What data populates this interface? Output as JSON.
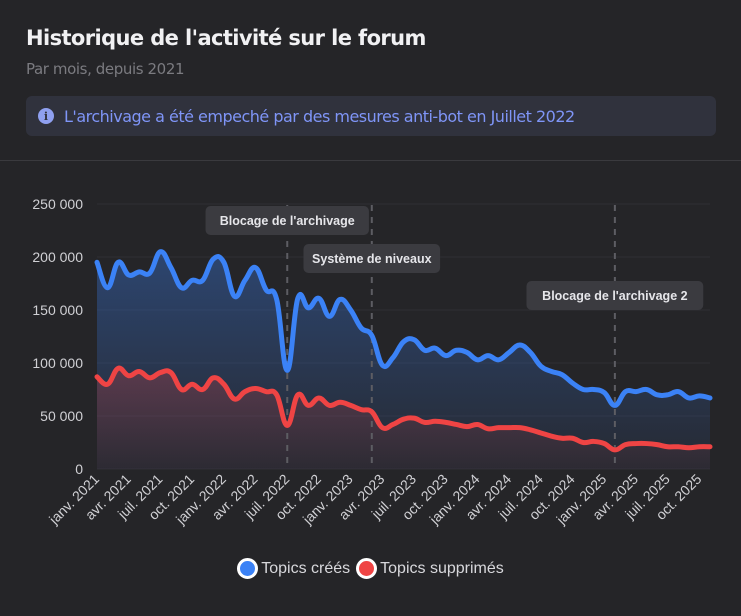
{
  "header": {
    "title": "Historique de l'activité sur le forum",
    "subtitle": "Par mois, depuis 2021",
    "info_icon": "info-circle-icon",
    "info_text": "L'archivage a été empeché par des mesures anti-bot en Juillet 2022"
  },
  "chart_data": {
    "type": "area",
    "title": "",
    "xlabel": "",
    "ylabel": "",
    "ylim": [
      0,
      250000
    ],
    "y_ticks": [
      "0",
      "50 000",
      "100 000",
      "150 000",
      "200 000",
      "250 000"
    ],
    "x_tick_labels": [
      "janv. 2021",
      "avr. 2021",
      "juil. 2021",
      "oct. 2021",
      "janv. 2022",
      "avr. 2022",
      "juil. 2022",
      "oct. 2022",
      "janv. 2023",
      "avr. 2023",
      "juil. 2023",
      "oct. 2023",
      "janv. 2024",
      "avr. 2024",
      "juil. 2024",
      "oct. 2024",
      "janv. 2025",
      "avr. 2025",
      "juil. 2025",
      "oct. 2025"
    ],
    "x_start": "2021-01",
    "x_end": "2025-11",
    "frequency": "monthly",
    "grid": true,
    "legend_position": "bottom",
    "series": [
      {
        "name": "Topics créés",
        "color": "#3b82f6",
        "values": [
          195000,
          171000,
          195000,
          183000,
          186000,
          185000,
          205000,
          190000,
          171000,
          178000,
          178000,
          198000,
          195000,
          163000,
          178000,
          190000,
          169000,
          160000,
          93000,
          161000,
          152000,
          161000,
          144000,
          160000,
          150000,
          133000,
          126000,
          98000,
          105000,
          120000,
          122000,
          112000,
          114000,
          107000,
          112000,
          110000,
          103000,
          107000,
          103000,
          110000,
          117000,
          110000,
          97000,
          92000,
          89000,
          81000,
          75000,
          75000,
          72000,
          60000,
          73000,
          73000,
          75000,
          70000,
          70000,
          73000,
          67000,
          69000,
          67000
        ]
      },
      {
        "name": "Topics supprimés",
        "color": "#ef4444",
        "values": [
          87000,
          80000,
          95000,
          88000,
          92000,
          86000,
          91000,
          91000,
          75000,
          80000,
          75000,
          86000,
          80000,
          66000,
          73000,
          76000,
          73000,
          70000,
          41000,
          70000,
          60000,
          67000,
          60000,
          63000,
          60000,
          56000,
          54000,
          39000,
          42000,
          47000,
          48000,
          44000,
          45000,
          44000,
          42000,
          40000,
          42000,
          38000,
          39000,
          39000,
          39000,
          37000,
          34000,
          31000,
          29000,
          29000,
          25000,
          26000,
          24000,
          18000,
          23000,
          24000,
          24000,
          23000,
          21000,
          21000,
          20000,
          21000,
          21000
        ]
      }
    ],
    "annotations": [
      {
        "label": "Blocage de l'archivage",
        "x": "2022-07"
      },
      {
        "label": "Système de niveaux",
        "x": "2023-03"
      },
      {
        "label": "Blocage de l'archivage 2",
        "x": "2025-02"
      }
    ]
  }
}
